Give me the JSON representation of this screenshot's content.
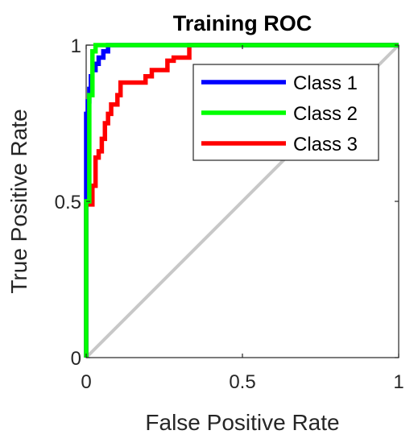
{
  "chart_data": {
    "type": "line",
    "title": "Training ROC",
    "xlabel": "False Positive Rate",
    "ylabel": "True Positive Rate",
    "xlim": [
      0,
      1
    ],
    "ylim": [
      0,
      1
    ],
    "x_ticks": [
      0,
      0.5,
      1
    ],
    "y_ticks": [
      0,
      0.5,
      1
    ],
    "x_tick_labels": [
      "0",
      "0.5",
      "1"
    ],
    "y_tick_labels": [
      "0",
      "0.5",
      "1"
    ],
    "grid": false,
    "legend_position": "top-right",
    "series": [
      {
        "name": "Class 1",
        "color": "#0000ff",
        "x": [
          0,
          0,
          0.005,
          0.005,
          0.01,
          0.01,
          0.015,
          0.015,
          0.02,
          0.02,
          0.03,
          0.03,
          0.04,
          0.04,
          0.055,
          0.055,
          0.07,
          0.07,
          0.07,
          1
        ],
        "y": [
          0,
          0.78,
          0.78,
          0.82,
          0.82,
          0.86,
          0.86,
          0.9,
          0.9,
          0.92,
          0.92,
          0.94,
          0.94,
          0.96,
          0.96,
          0.98,
          0.98,
          1.0,
          1.0,
          1.0
        ]
      },
      {
        "name": "Class 2",
        "color": "#00ff00",
        "x": [
          0,
          0,
          0.01,
          0.01,
          0.02,
          0.02,
          0.03,
          0.03,
          0.33,
          1
        ],
        "y": [
          0,
          0.5,
          0.5,
          0.84,
          0.84,
          0.98,
          0.98,
          1.0,
          1.0,
          1.0
        ]
      },
      {
        "name": "Class 3",
        "color": "#ff0000",
        "x": [
          0,
          0,
          0.02,
          0.02,
          0.03,
          0.03,
          0.04,
          0.04,
          0.05,
          0.05,
          0.06,
          0.06,
          0.07,
          0.07,
          0.08,
          0.08,
          0.1,
          0.1,
          0.11,
          0.11,
          0.19,
          0.19,
          0.21,
          0.21,
          0.26,
          0.26,
          0.28,
          0.28,
          0.33,
          0.33,
          1
        ],
        "y": [
          0,
          0.49,
          0.49,
          0.55,
          0.55,
          0.64,
          0.64,
          0.66,
          0.66,
          0.7,
          0.7,
          0.75,
          0.75,
          0.78,
          0.78,
          0.81,
          0.81,
          0.84,
          0.84,
          0.88,
          0.88,
          0.9,
          0.9,
          0.92,
          0.92,
          0.95,
          0.95,
          0.96,
          0.96,
          1.0,
          1.0
        ]
      }
    ],
    "reference_line": {
      "x": [
        0,
        1
      ],
      "y": [
        0,
        1
      ],
      "color": "#c8c8c8"
    }
  }
}
